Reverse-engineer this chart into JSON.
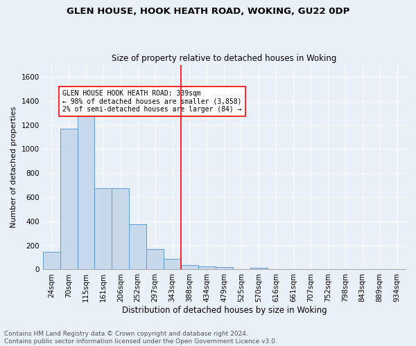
{
  "title1": "GLEN HOUSE, HOOK HEATH ROAD, WOKING, GU22 0DP",
  "title2": "Size of property relative to detached houses in Woking",
  "xlabel": "Distribution of detached houses by size in Woking",
  "ylabel": "Number of detached properties",
  "footer1": "Contains HM Land Registry data © Crown copyright and database right 2024.",
  "footer2": "Contains public sector information licensed under the Open Government Licence v3.0.",
  "bar_labels": [
    "24sqm",
    "70sqm",
    "115sqm",
    "161sqm",
    "206sqm",
    "252sqm",
    "297sqm",
    "343sqm",
    "388sqm",
    "434sqm",
    "479sqm",
    "525sqm",
    "570sqm",
    "616sqm",
    "661sqm",
    "707sqm",
    "752sqm",
    "798sqm",
    "843sqm",
    "889sqm",
    "934sqm"
  ],
  "bar_values": [
    148,
    1170,
    1270,
    675,
    675,
    375,
    170,
    88,
    35,
    25,
    20,
    0,
    15,
    0,
    0,
    0,
    0,
    0,
    0,
    0,
    0
  ],
  "bar_color": "#c9d9ec",
  "bar_edge_color": "#5b9bd5",
  "vline_x": 7.5,
  "vline_color": "red",
  "annotation_title": "GLEN HOUSE HOOK HEATH ROAD: 339sqm",
  "annotation_line1": "← 98% of detached houses are smaller (3,858)",
  "annotation_line2": "2% of semi-detached houses are larger (84) →",
  "ylim": [
    0,
    1700
  ],
  "yticks": [
    0,
    200,
    400,
    600,
    800,
    1000,
    1200,
    1400,
    1600
  ],
  "bg_color": "#eaf0f8",
  "plot_bg_color": "#eaf0f8",
  "grid_color": "#ffffff",
  "title1_fontsize": 9.5,
  "title2_fontsize": 8.5,
  "xlabel_fontsize": 8.5,
  "ylabel_fontsize": 8,
  "tick_fontsize": 7.5,
  "footer_fontsize": 6.5
}
